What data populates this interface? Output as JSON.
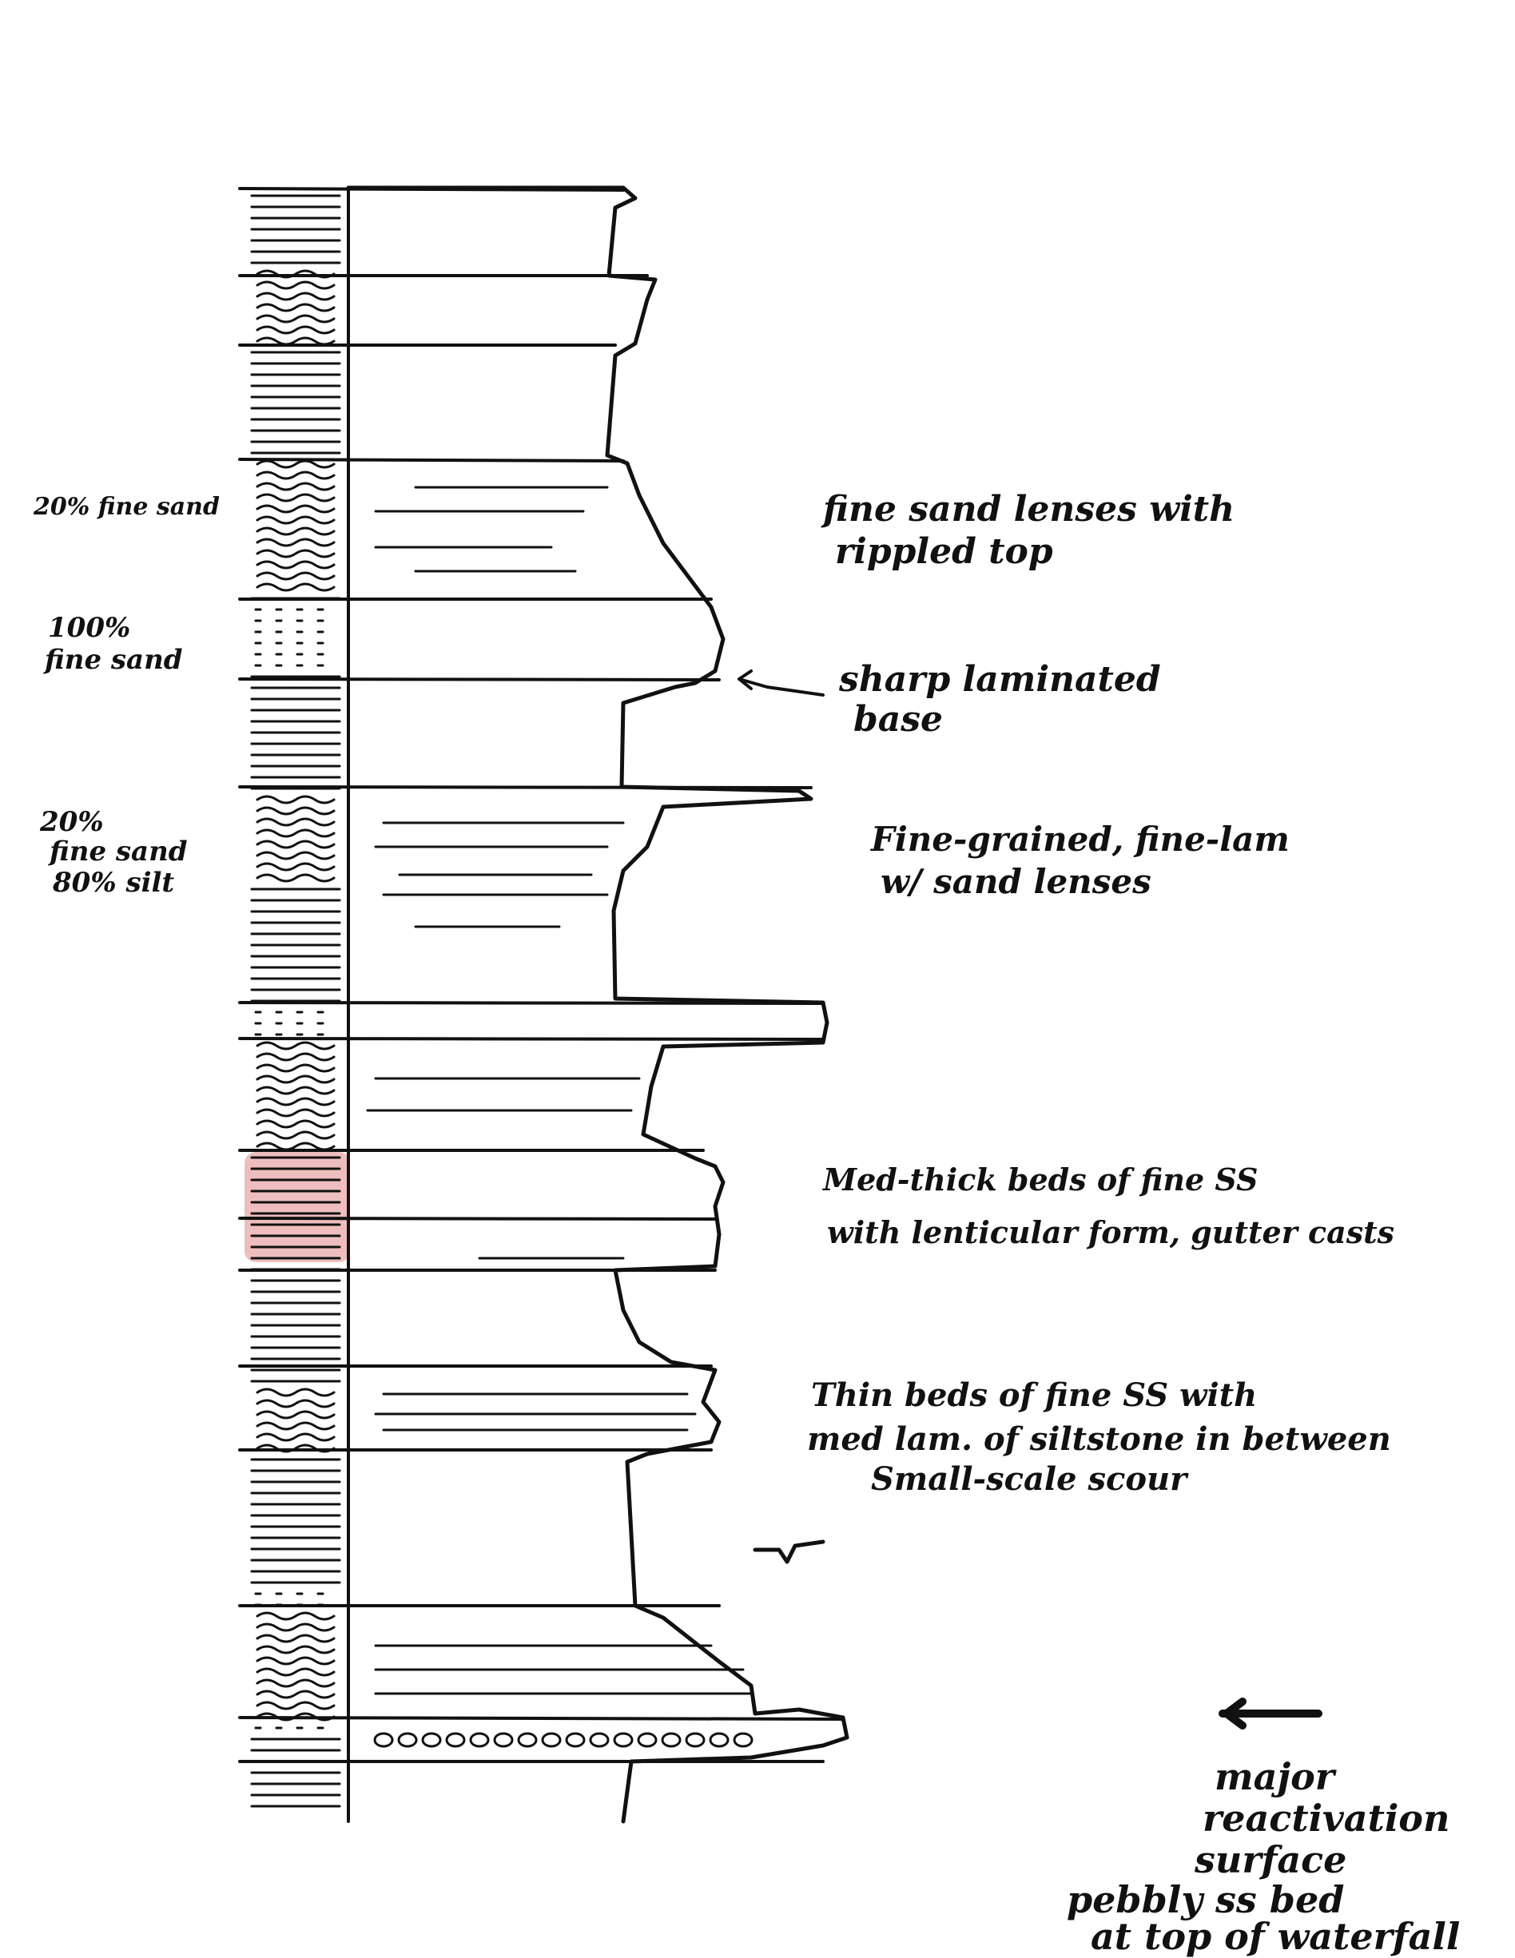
{
  "colors": {
    "ink": "#111111",
    "highlight": "#e8a8a8",
    "paper": "#ffffff"
  },
  "left_labels": [
    [
      "20% fine sand"
    ],
    [
      "100%",
      "fine sand"
    ],
    [
      "20%",
      "fine sand",
      "80% silt"
    ]
  ],
  "right_labels": [
    [
      "fine sand lenses with",
      "rippled top"
    ],
    [
      "sharp laminated",
      "base"
    ],
    [
      "Fine-grained, fine-lam",
      "w/ sand lenses"
    ],
    [
      "Med-thick beds of fine SS",
      "with lenticular form, gutter casts"
    ],
    [
      "Thin beds of fine SS with",
      "med lam. of siltstone in between",
      "Small-scale scour"
    ],
    [
      "major",
      "reactivation",
      "surface"
    ],
    [
      "pebbly ss bed",
      "at top of waterfall"
    ]
  ]
}
